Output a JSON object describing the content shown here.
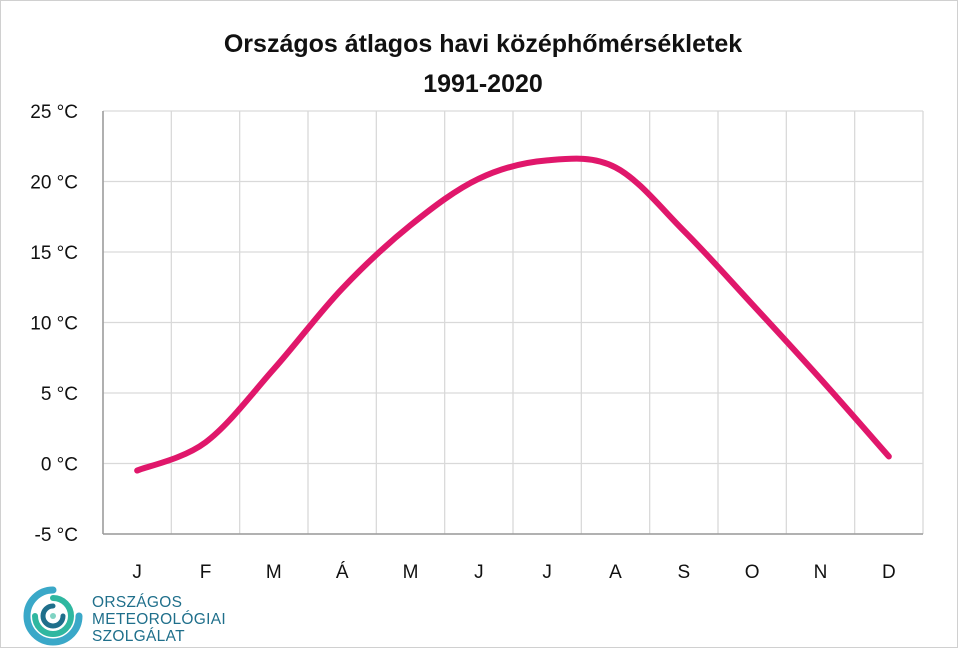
{
  "chart_data": {
    "type": "line",
    "title": "Országos átlagos havi középhőmérsékletek",
    "subtitle": "1991-2020",
    "categories": [
      "J",
      "F",
      "M",
      "Á",
      "M",
      "J",
      "J",
      "A",
      "S",
      "O",
      "N",
      "D"
    ],
    "series": [
      {
        "name": "Középhőmérséklet",
        "color": "#e0176b",
        "values": [
          -0.5,
          1.5,
          6.7,
          12.4,
          16.9,
          20.2,
          21.5,
          21.0,
          16.5,
          11.3,
          6.0,
          0.5
        ]
      }
    ],
    "ylim": [
      -5,
      25
    ],
    "yticks": [
      -5,
      0,
      5,
      10,
      15,
      20,
      25
    ],
    "ytick_labels": [
      "-5 °C",
      "0 °C",
      "5 °C",
      "10 °C",
      "15 °C",
      "20 °C",
      "25 °C"
    ],
    "xlabel": "",
    "ylabel": "",
    "grid": true,
    "legend": "none"
  },
  "logo": {
    "line1": "ORSZÁGOS",
    "line2": "METEOROLÓGIAI",
    "line3": "SZOLGÁLAT",
    "color": "#1f6f8b",
    "accent": "#2fb7a0"
  }
}
